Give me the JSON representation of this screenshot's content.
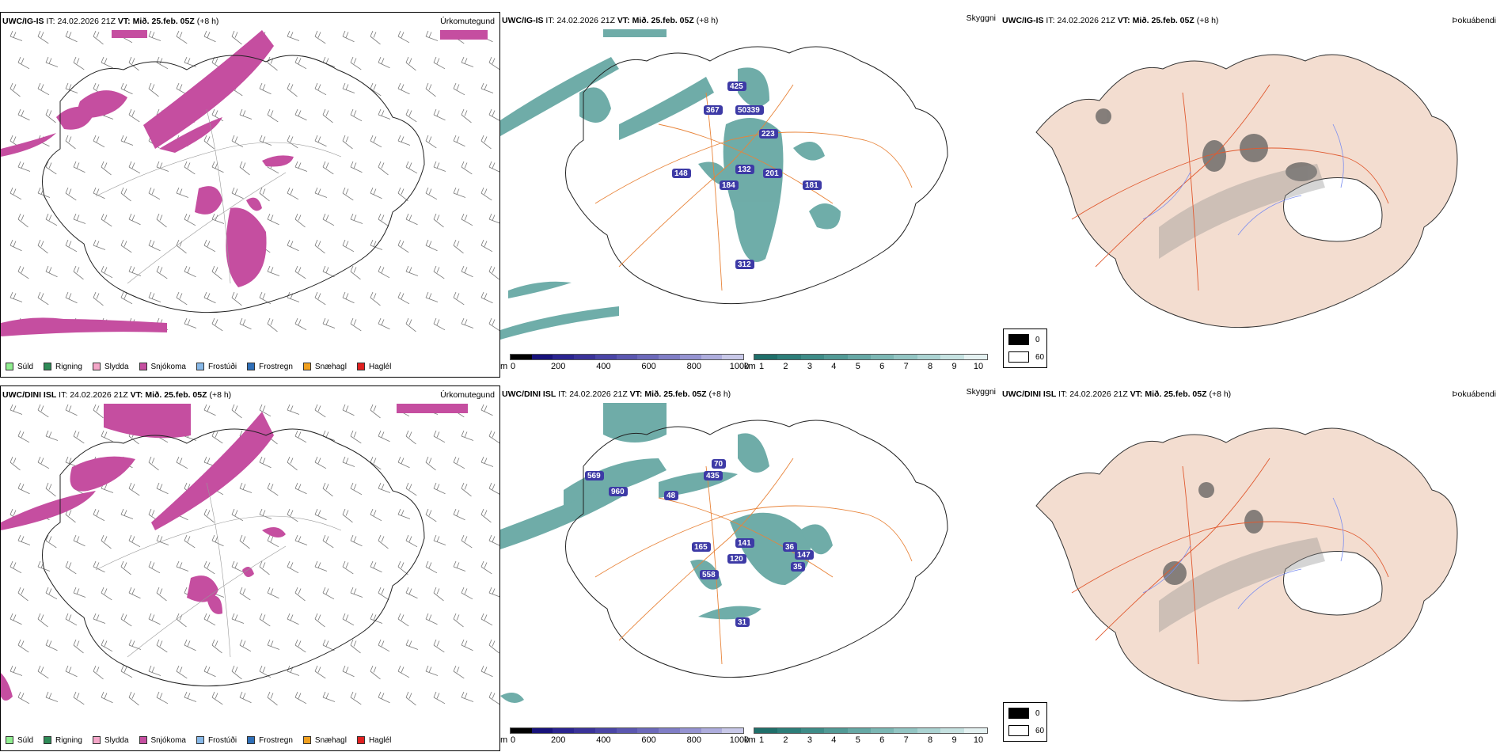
{
  "panels": [
    {
      "id": "p1",
      "model": "UWC/IG-IS",
      "it_label": "IT:",
      "it_value": "24.02.2026 21Z",
      "vt_label": "VT:",
      "vt_value": "Mið. 25.feb. 05Z",
      "lead": "(+8 h)",
      "param": "Úrkomutegund"
    },
    {
      "id": "p2",
      "model": "UWC/IG-IS",
      "it_label": "IT:",
      "it_value": "24.02.2026 21Z",
      "vt_label": "VT:",
      "vt_value": "Mið. 25.feb. 05Z",
      "lead": "(+8 h)",
      "param": "Skyggni"
    },
    {
      "id": "p3",
      "model": "UWC/IG-IS",
      "it_label": "IT:",
      "it_value": "24.02.2026 21Z",
      "vt_label": "VT:",
      "vt_value": "Mið. 25.feb. 05Z",
      "lead": "(+8 h)",
      "param": "Þokuábendi"
    },
    {
      "id": "p4",
      "model": "UWC/DINI ISL",
      "it_label": "IT:",
      "it_value": "24.02.2026 21Z",
      "vt_label": "VT:",
      "vt_value": "Mið. 25.feb. 05Z",
      "lead": "(+8 h)",
      "param": "Úrkomutegund"
    },
    {
      "id": "p5",
      "model": "UWC/DINI ISL",
      "it_label": "IT:",
      "it_value": "24.02.2026 21Z",
      "vt_label": "VT:",
      "vt_value": "Mið. 25.feb. 05Z",
      "lead": "(+8 h)",
      "param": "Skyggni"
    },
    {
      "id": "p6",
      "model": "UWC/DINI ISL",
      "it_label": "IT:",
      "it_value": "24.02.2026 21Z",
      "vt_label": "VT:",
      "vt_value": "Mið. 25.feb. 05Z",
      "lead": "(+8 h)",
      "param": "Þokuábendi"
    }
  ],
  "precip_legend": [
    {
      "label": "Súld",
      "color": "#90ee90"
    },
    {
      "label": "Rigning",
      "color": "#2e8b57"
    },
    {
      "label": "Slydda",
      "color": "#f4a6c8"
    },
    {
      "label": "Snjókoma",
      "color": "#c54ea0"
    },
    {
      "label": "Frostúði",
      "color": "#87b8e8"
    },
    {
      "label": "Frostregn",
      "color": "#2f6fb8"
    },
    {
      "label": "Snæhagl",
      "color": "#f0a020"
    },
    {
      "label": "Haglél",
      "color": "#e02020"
    }
  ],
  "ceiling_scale": {
    "unit": "m",
    "ticks": [
      "0",
      "200",
      "400",
      "600",
      "800",
      "1000"
    ],
    "colors": [
      "#000000",
      "#17127a",
      "#2a2490",
      "#3a3399",
      "#4a45a6",
      "#5b57b0",
      "#6c69ba",
      "#807ec6",
      "#9593d1",
      "#aeaddd",
      "#c8c8e8"
    ]
  },
  "visibility_scale": {
    "unit": "km",
    "ticks": [
      "1",
      "2",
      "3",
      "4",
      "5",
      "6",
      "7",
      "8",
      "9",
      "10"
    ],
    "colors": [
      "#1f6f6a",
      "#2d7e79",
      "#3e8c88",
      "#529a96",
      "#66a8a5",
      "#7cb7b4",
      "#93c5c3",
      "#abd3d2",
      "#c6e2e1",
      "#e4f1f1"
    ]
  },
  "fog_key": [
    {
      "label": "0",
      "color": "#000000"
    },
    {
      "label": "60",
      "color": "#ffffff"
    }
  ],
  "ceiling_labels_top": [
    "425",
    "367",
    "50339",
    "223",
    "148",
    "132",
    "201",
    "184",
    "181",
    "312"
  ],
  "ceiling_labels_bottom": [
    "70",
    "569",
    "435",
    "960",
    "48",
    "141",
    "165",
    "120",
    "558",
    "147",
    "36",
    "35",
    "31"
  ],
  "colors": {
    "snow": "#c54ea0",
    "vis": "#3f918c",
    "road": "#e8843a",
    "coast": "#1a1a1a",
    "land_fog": "#f3ddd0"
  }
}
